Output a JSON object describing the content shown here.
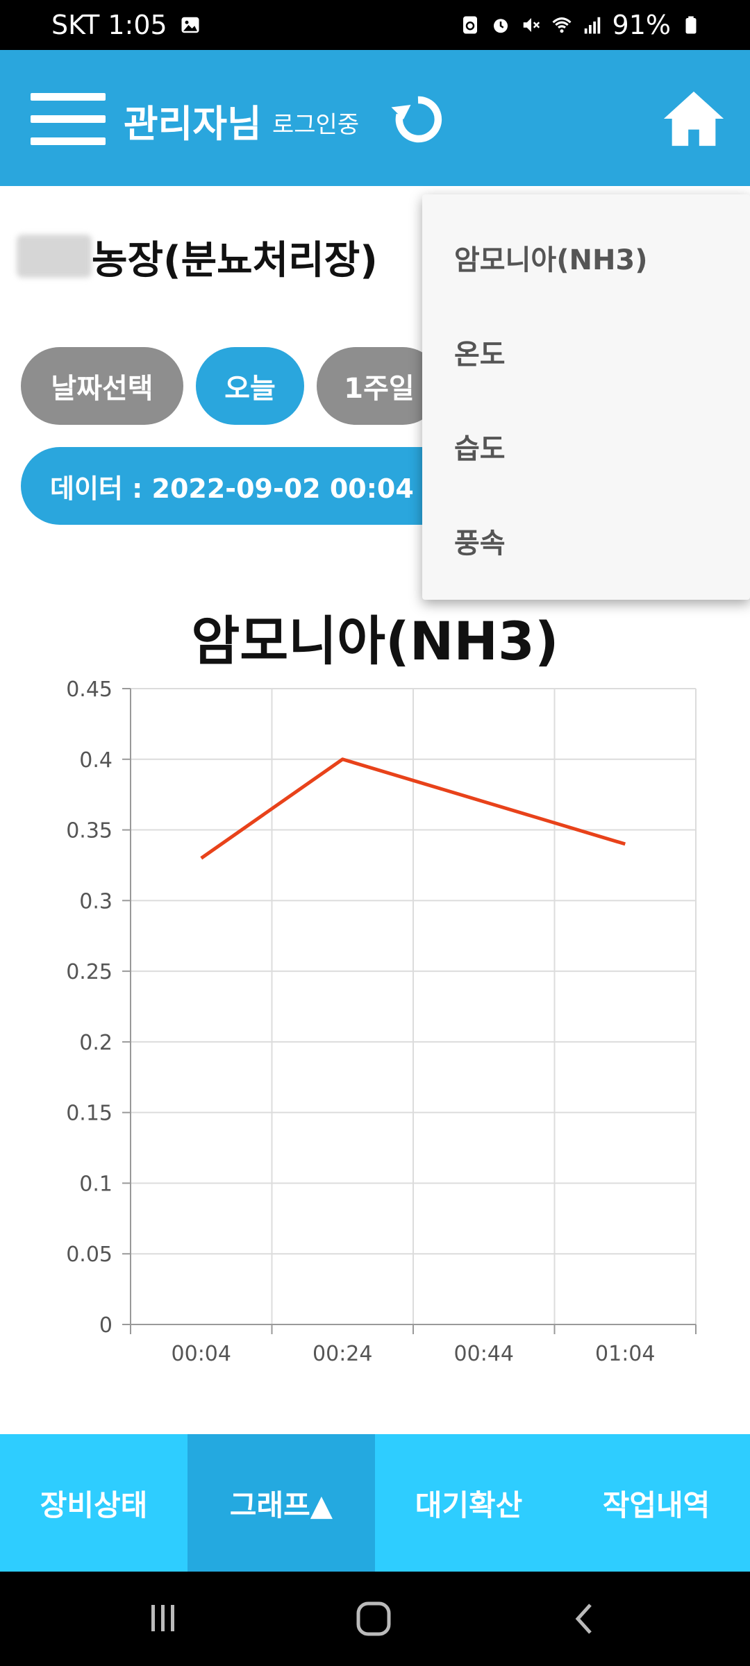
{
  "status_bar": {
    "carrier_time": "SKT 1:05",
    "battery": "91%",
    "icons": [
      "gallery-icon",
      "recycle-icon",
      "alarm-icon",
      "mute-icon",
      "wifi-icon",
      "signal-icon",
      "battery-icon"
    ]
  },
  "app_bar": {
    "title": "관리자님",
    "subtitle": "로그인중",
    "icons": [
      "menu-icon",
      "refresh-icon",
      "home-icon"
    ]
  },
  "farm_title": "농장(분뇨처리장)",
  "buttons": {
    "date_select": "날짜선택",
    "today": "오늘",
    "week": "1주일"
  },
  "data_range": "데이터 : 2022-09-02 00:04 ~",
  "dropdown": {
    "items": [
      "암모니아(NH3)",
      "온도",
      "습도",
      "풍속"
    ]
  },
  "chart_data": {
    "type": "line",
    "title": "암모니아(NH3)",
    "categories": [
      "00:04",
      "00:24",
      "00:44",
      "01:04"
    ],
    "series": [
      {
        "values": [
          0.33,
          0.4,
          0.37,
          0.34
        ],
        "color": "#e8421a"
      }
    ],
    "y_ticks": [
      "0",
      "0.05",
      "0.1",
      "0.15",
      "0.2",
      "0.25",
      "0.3",
      "0.35",
      "0.4",
      "0.45"
    ],
    "ylim": [
      0,
      0.45
    ],
    "grid": true
  },
  "tabs": [
    {
      "label": "장비상태"
    },
    {
      "label": "그래프▲"
    },
    {
      "label": "대기확산"
    },
    {
      "label": "작업내역"
    }
  ],
  "colors": {
    "primary": "#2aa6dd",
    "tab_bar": "#2ecdff",
    "tab_active": "#24a9e0",
    "line": "#e8421a",
    "pill_gray": "#8e8e8e"
  }
}
